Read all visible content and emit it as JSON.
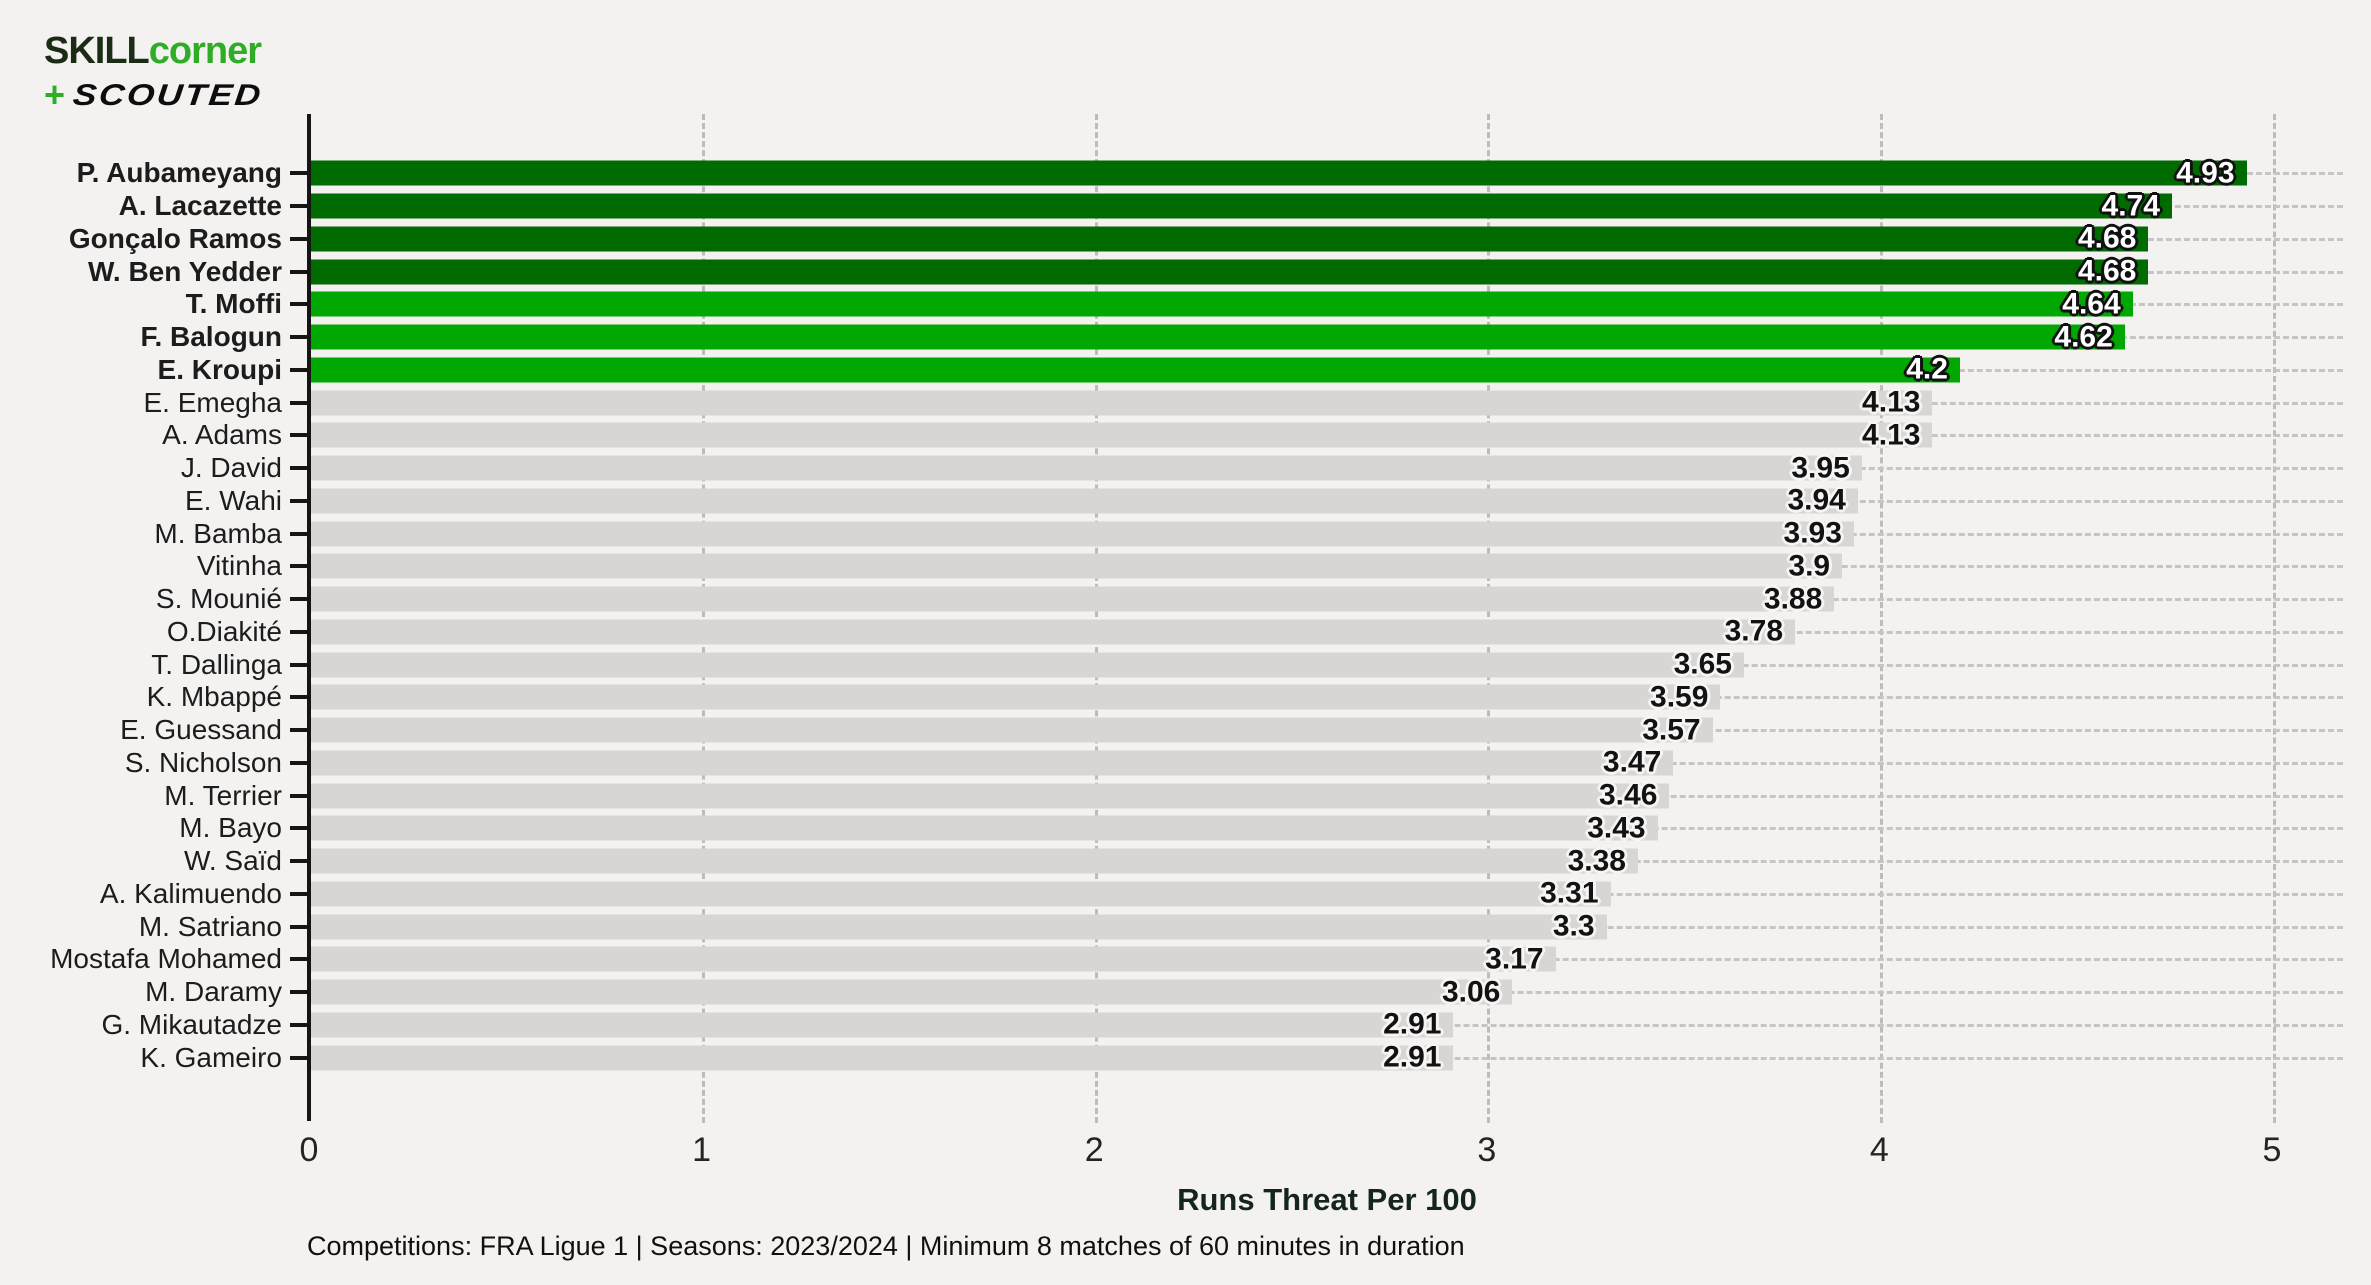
{
  "logo": {
    "skill": "SKILL",
    "corner": "corner",
    "plus": "+",
    "scouted": "SCOUTED"
  },
  "chart_data": {
    "type": "bar",
    "orientation": "horizontal",
    "title": "",
    "xlabel": "Runs Threat Per 100",
    "ylabel": "",
    "footnote": "Competitions: FRA Ligue 1 | Seasons: 2023/2024 | Minimum 8 matches of 60 minutes in duration",
    "xlim": [
      0,
      5
    ],
    "xticks": [
      "0",
      "1",
      "2",
      "3",
      "4",
      "5"
    ],
    "grid": "dashed, horizontal per row and vertical per unit",
    "legend": "none",
    "colors": {
      "dark": "#006B00",
      "bright": "#02A802",
      "gray": "#D8D6D4",
      "background": "#F4F2F1"
    },
    "players": [
      {
        "name": "P. Aubameyang",
        "value": 4.93,
        "label": "4.93",
        "group": "dark",
        "bold": true
      },
      {
        "name": "A. Lacazette",
        "value": 4.74,
        "label": "4.74",
        "group": "dark",
        "bold": true
      },
      {
        "name": "Gonçalo Ramos",
        "value": 4.68,
        "label": "4.68",
        "group": "dark",
        "bold": true
      },
      {
        "name": "W. Ben Yedder",
        "value": 4.68,
        "label": "4.68",
        "group": "dark",
        "bold": true
      },
      {
        "name": "T. Moffi",
        "value": 4.64,
        "label": "4.64",
        "group": "bright",
        "bold": true
      },
      {
        "name": "F. Balogun",
        "value": 4.62,
        "label": "4.62",
        "group": "bright",
        "bold": true
      },
      {
        "name": "E. Kroupi",
        "value": 4.2,
        "label": "4.2",
        "group": "bright",
        "bold": true
      },
      {
        "name": "E. Emegha",
        "value": 4.13,
        "label": "4.13",
        "group": "gray",
        "bold": false
      },
      {
        "name": "A. Adams",
        "value": 4.13,
        "label": "4.13",
        "group": "gray",
        "bold": false
      },
      {
        "name": "J. David",
        "value": 3.95,
        "label": "3.95",
        "group": "gray",
        "bold": false
      },
      {
        "name": "E. Wahi",
        "value": 3.94,
        "label": "3.94",
        "group": "gray",
        "bold": false
      },
      {
        "name": "M. Bamba",
        "value": 3.93,
        "label": "3.93",
        "group": "gray",
        "bold": false
      },
      {
        "name": "Vitinha",
        "value": 3.9,
        "label": "3.9",
        "group": "gray",
        "bold": false
      },
      {
        "name": "S. Mounié",
        "value": 3.88,
        "label": "3.88",
        "group": "gray",
        "bold": false
      },
      {
        "name": "O.Diakité",
        "value": 3.78,
        "label": "3.78",
        "group": "gray",
        "bold": false
      },
      {
        "name": "T. Dallinga",
        "value": 3.65,
        "label": "3.65",
        "group": "gray",
        "bold": false
      },
      {
        "name": "K. Mbappé",
        "value": 3.59,
        "label": "3.59",
        "group": "gray",
        "bold": false
      },
      {
        "name": "E. Guessand",
        "value": 3.57,
        "label": "3.57",
        "group": "gray",
        "bold": false
      },
      {
        "name": "S. Nicholson",
        "value": 3.47,
        "label": "3.47",
        "group": "gray",
        "bold": false
      },
      {
        "name": "M. Terrier",
        "value": 3.46,
        "label": "3.46",
        "group": "gray",
        "bold": false
      },
      {
        "name": "M. Bayo",
        "value": 3.43,
        "label": "3.43",
        "group": "gray",
        "bold": false
      },
      {
        "name": "W. Saïd",
        "value": 3.38,
        "label": "3.38",
        "group": "gray",
        "bold": false
      },
      {
        "name": "A. Kalimuendo",
        "value": 3.31,
        "label": "3.31",
        "group": "gray",
        "bold": false
      },
      {
        "name": "M. Satriano",
        "value": 3.3,
        "label": "3.3",
        "group": "gray",
        "bold": false
      },
      {
        "name": "Mostafa Mohamed",
        "value": 3.17,
        "label": "3.17",
        "group": "gray",
        "bold": false
      },
      {
        "name": "M. Daramy",
        "value": 3.06,
        "label": "3.06",
        "group": "gray",
        "bold": false
      },
      {
        "name": "G. Mikautadze",
        "value": 2.91,
        "label": "2.91",
        "group": "gray",
        "bold": false
      },
      {
        "name": "K. Gameiro",
        "value": 2.91,
        "label": "2.91",
        "group": "gray",
        "bold": false
      }
    ]
  }
}
